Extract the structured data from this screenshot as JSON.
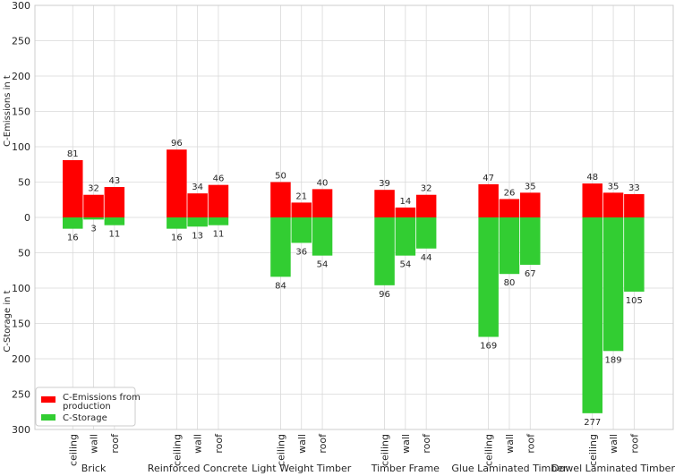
{
  "chart_data": {
    "type": "bar",
    "groups": [
      "Brick",
      "Reinforced Concrete",
      "Light Weight Timber",
      "Timber Frame",
      "Glue Laminated Timber",
      "Dowel Laminated Timber"
    ],
    "components": [
      "ceiling",
      "wall",
      "roof"
    ],
    "series": [
      {
        "name": "C-Emissions from production",
        "color": "#ff0000",
        "values": [
          [
            81,
            32,
            43
          ],
          [
            96,
            34,
            46
          ],
          [
            50,
            21,
            40
          ],
          [
            39,
            14,
            32
          ],
          [
            47,
            26,
            35
          ],
          [
            48,
            35,
            33
          ]
        ]
      },
      {
        "name": "C-Storage",
        "color": "#32cd32",
        "values": [
          [
            16,
            3,
            11
          ],
          [
            16,
            13,
            11
          ],
          [
            84,
            36,
            54
          ],
          [
            96,
            54,
            44
          ],
          [
            169,
            80,
            67
          ],
          [
            277,
            189,
            105
          ]
        ]
      }
    ],
    "ylabel_top": "C-Emissions in t",
    "ylabel_bottom": "C-Storage in t",
    "yticks": [
      300,
      250,
      200,
      150,
      100,
      50,
      0,
      50,
      100,
      150,
      200,
      250,
      300
    ],
    "ylim": [
      -300,
      300
    ],
    "grid": true,
    "legend_position": "lower-left"
  }
}
